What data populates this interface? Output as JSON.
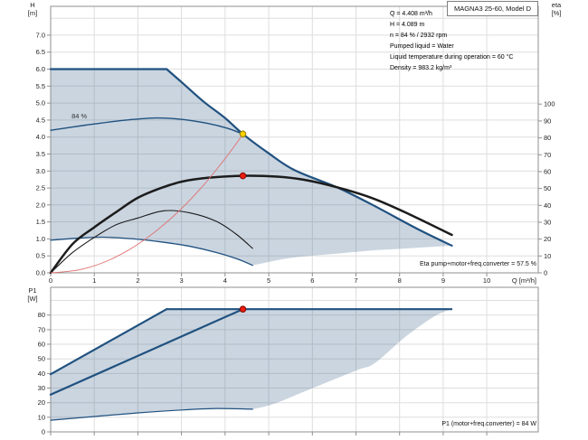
{
  "info_panel": {
    "lines": [
      "Q = 4.408 m³/h",
      "H = 4.089 m",
      "n = 84 % / 2932 rpm",
      "Pumped liquid = Water",
      "Liquid temperature during operation = 60 °C",
      "Density = 983.2 kg/m³"
    ]
  },
  "colors": {
    "curve_blue": "#20517f",
    "fill_blue": "rgba(32,81,127,0.24)",
    "black": "#1c1c1c",
    "red_curve": "#e07070",
    "dot_red_fill": "#ee1c0f",
    "dot_red_stroke": "#8a0e06",
    "dot_yellow_fill": "#ffd400",
    "dot_yellow_stroke": "#a08a00",
    "grid": "#dedede",
    "axis": "#8f8f8f",
    "text": "#222222"
  },
  "chart_data": [
    {
      "name": "qh-curve-chart",
      "type": "line",
      "title": "MAGNA3 25-60, Model D",
      "xlabel": "Q [m³/h]",
      "ylabel_lines": [
        "H",
        "[m]"
      ],
      "right_axis": {
        "label_lines": [
          "eta",
          "[%]"
        ],
        "ticks": [
          0,
          10,
          20,
          30,
          40,
          50,
          60,
          70,
          80,
          90,
          100
        ],
        "h_per_pct": 0.0497
      },
      "xlim": [
        0,
        11.18
      ],
      "ylim": [
        0,
        7.85
      ],
      "x_ticks": [
        0,
        1,
        2,
        3,
        4,
        5,
        6,
        7,
        8,
        9,
        10
      ],
      "x_tick_labels_visible": true,
      "y_ticks": [
        0,
        0.5,
        1,
        1.5,
        2,
        2.5,
        3,
        3.5,
        4,
        4.5,
        5,
        5.5,
        6,
        6.5,
        7
      ],
      "y_tick_labels": [
        "0.0",
        "0.5",
        "1.0",
        "1.5",
        "2.0",
        "2.5",
        "3.0",
        "3.5",
        "4.0",
        "4.5",
        "5.0",
        "5.5",
        "6.0",
        "6.5",
        "7.0"
      ],
      "y_grid": [
        0.5,
        1,
        1.5,
        2,
        2.5,
        3,
        3.5,
        4,
        4.5,
        5,
        5.5,
        6,
        6.5,
        7,
        7.5
      ],
      "footer": "Eta pump+motor+freq.converter = 57.5 %",
      "duty_point": {
        "Q": 4.408,
        "H": 4.089,
        "eta_total_pct": 57.5
      },
      "region_axis": "H",
      "region": [
        {
          "t": "L",
          "pts": [
            [
              0,
              6.0
            ],
            [
              2.66,
              6.0
            ]
          ]
        },
        {
          "t": "C",
          "pts": [
            [
              2.66,
              6.0
            ],
            [
              3.0,
              5.62
            ],
            [
              3.5,
              5.05
            ],
            [
              4.0,
              4.56
            ],
            [
              4.408,
              4.089
            ],
            [
              5.0,
              3.52
            ],
            [
              5.6,
              3.02
            ],
            [
              6.6,
              2.5
            ],
            [
              7.5,
              1.92
            ],
            [
              8.4,
              1.3
            ],
            [
              9.2,
              0.8
            ]
          ]
        },
        {
          "t": "C",
          "pts": [
            [
              9.2,
              0.8
            ],
            [
              8.4,
              0.74
            ],
            [
              7.5,
              0.67
            ],
            [
              6.5,
              0.56
            ],
            [
              5.5,
              0.44
            ],
            [
              4.63,
              0.22
            ]
          ]
        },
        {
          "t": "C",
          "pts": [
            [
              4.63,
              0.22
            ],
            [
              4.3,
              0.4
            ],
            [
              3.8,
              0.6
            ],
            [
              3.2,
              0.78
            ],
            [
              2.6,
              0.9
            ],
            [
              1.9,
              1.0
            ],
            [
              1.2,
              1.05
            ],
            [
              0.6,
              1.02
            ],
            [
              0,
              0.96
            ]
          ]
        }
      ],
      "series": [
        {
          "name": "qh-max-speed-flat",
          "axis": "H",
          "smooth": false,
          "color": "curve_blue",
          "width": 2.2,
          "points": [
            [
              0,
              6.0
            ],
            [
              2.66,
              6.0
            ]
          ]
        },
        {
          "name": "qh-max-speed-curve",
          "axis": "H",
          "smooth": true,
          "color": "curve_blue",
          "width": 2.2,
          "points": [
            [
              2.66,
              6.0
            ],
            [
              3.0,
              5.62
            ],
            [
              3.5,
              5.05
            ],
            [
              4.0,
              4.56
            ],
            [
              4.408,
              4.089
            ],
            [
              5.0,
              3.52
            ],
            [
              5.6,
              3.02
            ],
            [
              6.6,
              2.5
            ],
            [
              7.5,
              1.92
            ],
            [
              8.4,
              1.3
            ],
            [
              9.2,
              0.8
            ]
          ]
        },
        {
          "name": "qh-84pct-speed-curve",
          "axis": "H",
          "smooth": true,
          "color": "curve_blue",
          "width": 1.4,
          "label": "84 %",
          "label_xy": [
            0.48,
            4.55
          ],
          "points": [
            [
              0,
              4.2
            ],
            [
              0.8,
              4.35
            ],
            [
              1.6,
              4.48
            ],
            [
              2.4,
              4.56
            ],
            [
              3.0,
              4.52
            ],
            [
              3.6,
              4.4
            ],
            [
              4.05,
              4.26
            ],
            [
              4.408,
              4.089
            ]
          ]
        },
        {
          "name": "qh-min-speed-curve",
          "axis": "H",
          "smooth": true,
          "color": "curve_blue",
          "width": 1.3,
          "points": [
            [
              0,
              0.96
            ],
            [
              0.6,
              1.02
            ],
            [
              1.2,
              1.05
            ],
            [
              1.9,
              1.0
            ],
            [
              2.6,
              0.9
            ],
            [
              3.2,
              0.78
            ],
            [
              3.8,
              0.6
            ],
            [
              4.3,
              0.4
            ],
            [
              4.63,
              0.22
            ]
          ]
        },
        {
          "name": "eta-total-curve",
          "axis": "eta",
          "smooth": true,
          "color": "black",
          "width": 2.5,
          "points": [
            [
              0,
              0
            ],
            [
              0.5,
              17
            ],
            [
              1,
              27
            ],
            [
              1.5,
              36
            ],
            [
              2,
              44.5
            ],
            [
              2.5,
              50
            ],
            [
              3,
              54
            ],
            [
              3.6,
              56.3
            ],
            [
              4.408,
              57.5
            ],
            [
              5.2,
              57
            ],
            [
              5.8,
              55.2
            ],
            [
              6.6,
              50.5
            ],
            [
              7.4,
              44
            ],
            [
              8.2,
              35
            ],
            [
              9.2,
              22.5
            ]
          ]
        },
        {
          "name": "eta-secondary-curve",
          "axis": "eta",
          "smooth": true,
          "color": "black",
          "width": 1.1,
          "points": [
            [
              0,
              0
            ],
            [
              0.5,
              12
            ],
            [
              1,
              21
            ],
            [
              1.5,
              28.5
            ],
            [
              2,
              32.5
            ],
            [
              2.6,
              36.8
            ],
            [
              3.2,
              35.5
            ],
            [
              3.8,
              30.5
            ],
            [
              4.25,
              23
            ],
            [
              4.63,
              14.5
            ]
          ]
        },
        {
          "name": "system-curve",
          "axis": "H",
          "smooth": true,
          "color": "red_curve",
          "width": 0.9,
          "points": [
            [
              0,
              0
            ],
            [
              0.7,
              0.1
            ],
            [
              1.4,
              0.41
            ],
            [
              2.1,
              0.93
            ],
            [
              2.8,
              1.65
            ],
            [
              3.4,
              2.43
            ],
            [
              3.9,
              3.2
            ],
            [
              4.2,
              3.71
            ],
            [
              4.408,
              4.089
            ]
          ]
        }
      ],
      "markers": [
        {
          "name": "duty-point",
          "axis": "H",
          "xy": [
            4.408,
            4.089
          ],
          "fill": "dot_yellow_fill",
          "stroke": "dot_yellow_stroke"
        },
        {
          "name": "eta-duty-point",
          "axis": "eta",
          "xy": [
            4.408,
            57.5
          ],
          "fill": "dot_red_fill",
          "stroke": "dot_red_stroke"
        }
      ]
    },
    {
      "name": "p1-power-chart",
      "type": "line",
      "title": "",
      "xlabel": "Q [m³/h]",
      "ylabel_lines": [
        "P1",
        "[W]"
      ],
      "xlim": [
        0,
        11.18
      ],
      "ylim": [
        0,
        99
      ],
      "x_ticks": [
        0,
        1,
        2,
        3,
        4,
        5,
        6,
        7,
        8,
        9,
        10
      ],
      "x_tick_labels_visible": false,
      "y_ticks": [
        0,
        10,
        20,
        30,
        40,
        50,
        60,
        70,
        80
      ],
      "y_tick_labels": [
        "0",
        "10",
        "20",
        "30",
        "40",
        "50",
        "60",
        "70",
        "80"
      ],
      "y_grid": [
        10,
        20,
        30,
        40,
        50,
        60,
        70,
        80,
        90
      ],
      "footer": "P1 (motor+freq.converter) = 84 W",
      "duty_point": {
        "Q": 4.408,
        "P1_W": 84
      },
      "region_axis": "W",
      "region": [
        {
          "t": "L",
          "pts": [
            [
              0,
              39.5
            ],
            [
              2.66,
              84
            ]
          ]
        },
        {
          "t": "L",
          "pts": [
            [
              2.66,
              84
            ],
            [
              9.19,
              84
            ]
          ]
        },
        {
          "t": "C",
          "pts": [
            [
              9.19,
              84
            ],
            [
              8.82,
              79.5
            ],
            [
              8.13,
              65
            ],
            [
              7.43,
              47
            ],
            [
              7.0,
              42
            ],
            [
              5.9,
              28.6
            ],
            [
              5.1,
              19
            ],
            [
              4.63,
              15.5
            ]
          ]
        },
        {
          "t": "C",
          "pts": [
            [
              4.63,
              15.5
            ],
            [
              3.8,
              16
            ],
            [
              3.0,
              15
            ],
            [
              2.0,
              13
            ],
            [
              1.0,
              10.5
            ],
            [
              0,
              8
            ]
          ]
        }
      ],
      "series": [
        {
          "name": "p1-max-rise",
          "axis": "W",
          "smooth": false,
          "color": "curve_blue",
          "width": 2.2,
          "points": [
            [
              0,
              39.5
            ],
            [
              2.66,
              84
            ]
          ]
        },
        {
          "name": "p1-max-flat",
          "axis": "W",
          "smooth": false,
          "color": "curve_blue",
          "width": 2.2,
          "points": [
            [
              2.66,
              84
            ],
            [
              9.19,
              84
            ]
          ]
        },
        {
          "name": "p1-control-line",
          "axis": "W",
          "smooth": false,
          "color": "curve_blue",
          "width": 2.2,
          "points": [
            [
              0,
              25.5
            ],
            [
              4.408,
              84
            ]
          ]
        },
        {
          "name": "p1-min-curve",
          "axis": "W",
          "smooth": true,
          "color": "curve_blue",
          "width": 1.2,
          "points": [
            [
              0,
              8
            ],
            [
              1,
              10.5
            ],
            [
              2,
              13
            ],
            [
              3,
              15
            ],
            [
              3.8,
              16
            ],
            [
              4.63,
              15.5
            ]
          ]
        }
      ],
      "markers": [
        {
          "name": "p1-duty-point",
          "axis": "W",
          "xy": [
            4.408,
            84
          ],
          "fill": "dot_red_fill",
          "stroke": "dot_red_stroke"
        }
      ]
    }
  ]
}
